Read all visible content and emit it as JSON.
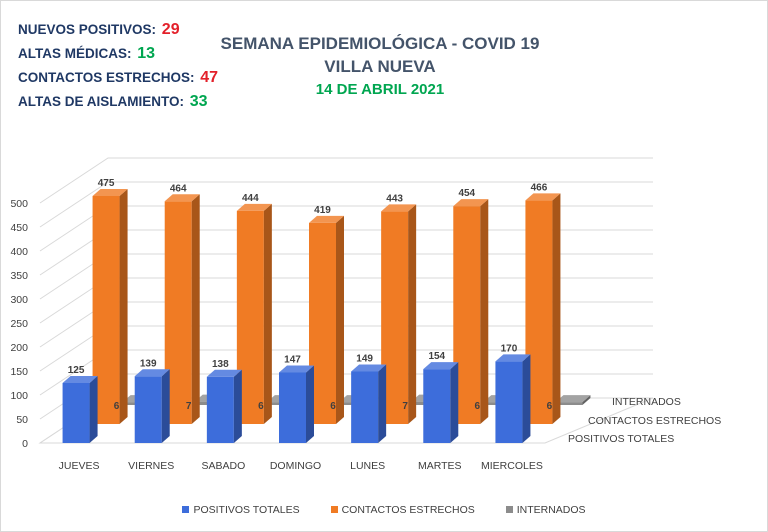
{
  "stats": [
    {
      "label": "NUEVOS POSITIVOS:",
      "value": "29",
      "color": "#e3202a"
    },
    {
      "label": "ALTAS MÉDICAS:",
      "value": "13",
      "color": "#00a650"
    },
    {
      "label": "CONTACTOS ESTRECHOS:",
      "value": "47",
      "color": "#e3202a"
    },
    {
      "label": "ALTAS DE AISLAMIENTO:",
      "value": "33",
      "color": "#00a650"
    }
  ],
  "header": {
    "title_line1": "SEMANA EPIDEMIOLÓGICA - COVID 19",
    "title_line2": "VILLA NUEVA",
    "date": "14 DE ABRIL 2021"
  },
  "chart_data": {
    "type": "bar",
    "style": "3d-clustered",
    "categories": [
      "JUEVES",
      "VIERNES",
      "SABADO",
      "DOMINGO",
      "LUNES",
      "MARTES",
      "MIERCOLES"
    ],
    "series": [
      {
        "name": "POSITIVOS TOTALES",
        "values": [
          125,
          139,
          138,
          147,
          149,
          154,
          170
        ],
        "color": "#3d6ddb"
      },
      {
        "name": "CONTACTOS ESTRECHOS",
        "values": [
          475,
          464,
          444,
          419,
          443,
          454,
          466
        ],
        "color": "#f07b24"
      },
      {
        "name": "INTERNADOS",
        "values": [
          6,
          7,
          6,
          6,
          7,
          6,
          6
        ],
        "color": "#8c8c8c"
      }
    ],
    "data_labels": {
      "POSITIVOS TOTALES": [
        "125",
        "139",
        "138",
        "147",
        "149",
        "154",
        "170"
      ],
      "CONTACTOS ESTRECHOS": [
        "475",
        "464",
        "444",
        "419",
        "443",
        "454",
        "466"
      ],
      "INTERNADOS": [
        "6",
        "7",
        "6",
        "6",
        "7",
        "6",
        "6"
      ]
    },
    "depth_labels": [
      "INTERNADOS",
      "CONTACTOS ESTRECHOS",
      "POSITIVOS TOTALES"
    ],
    "yticks": [
      "0",
      "50",
      "100",
      "150",
      "200",
      "250",
      "300",
      "350",
      "400",
      "450",
      "500"
    ],
    "ylim": [
      0,
      500
    ],
    "grid": true,
    "legend": "bottom"
  }
}
